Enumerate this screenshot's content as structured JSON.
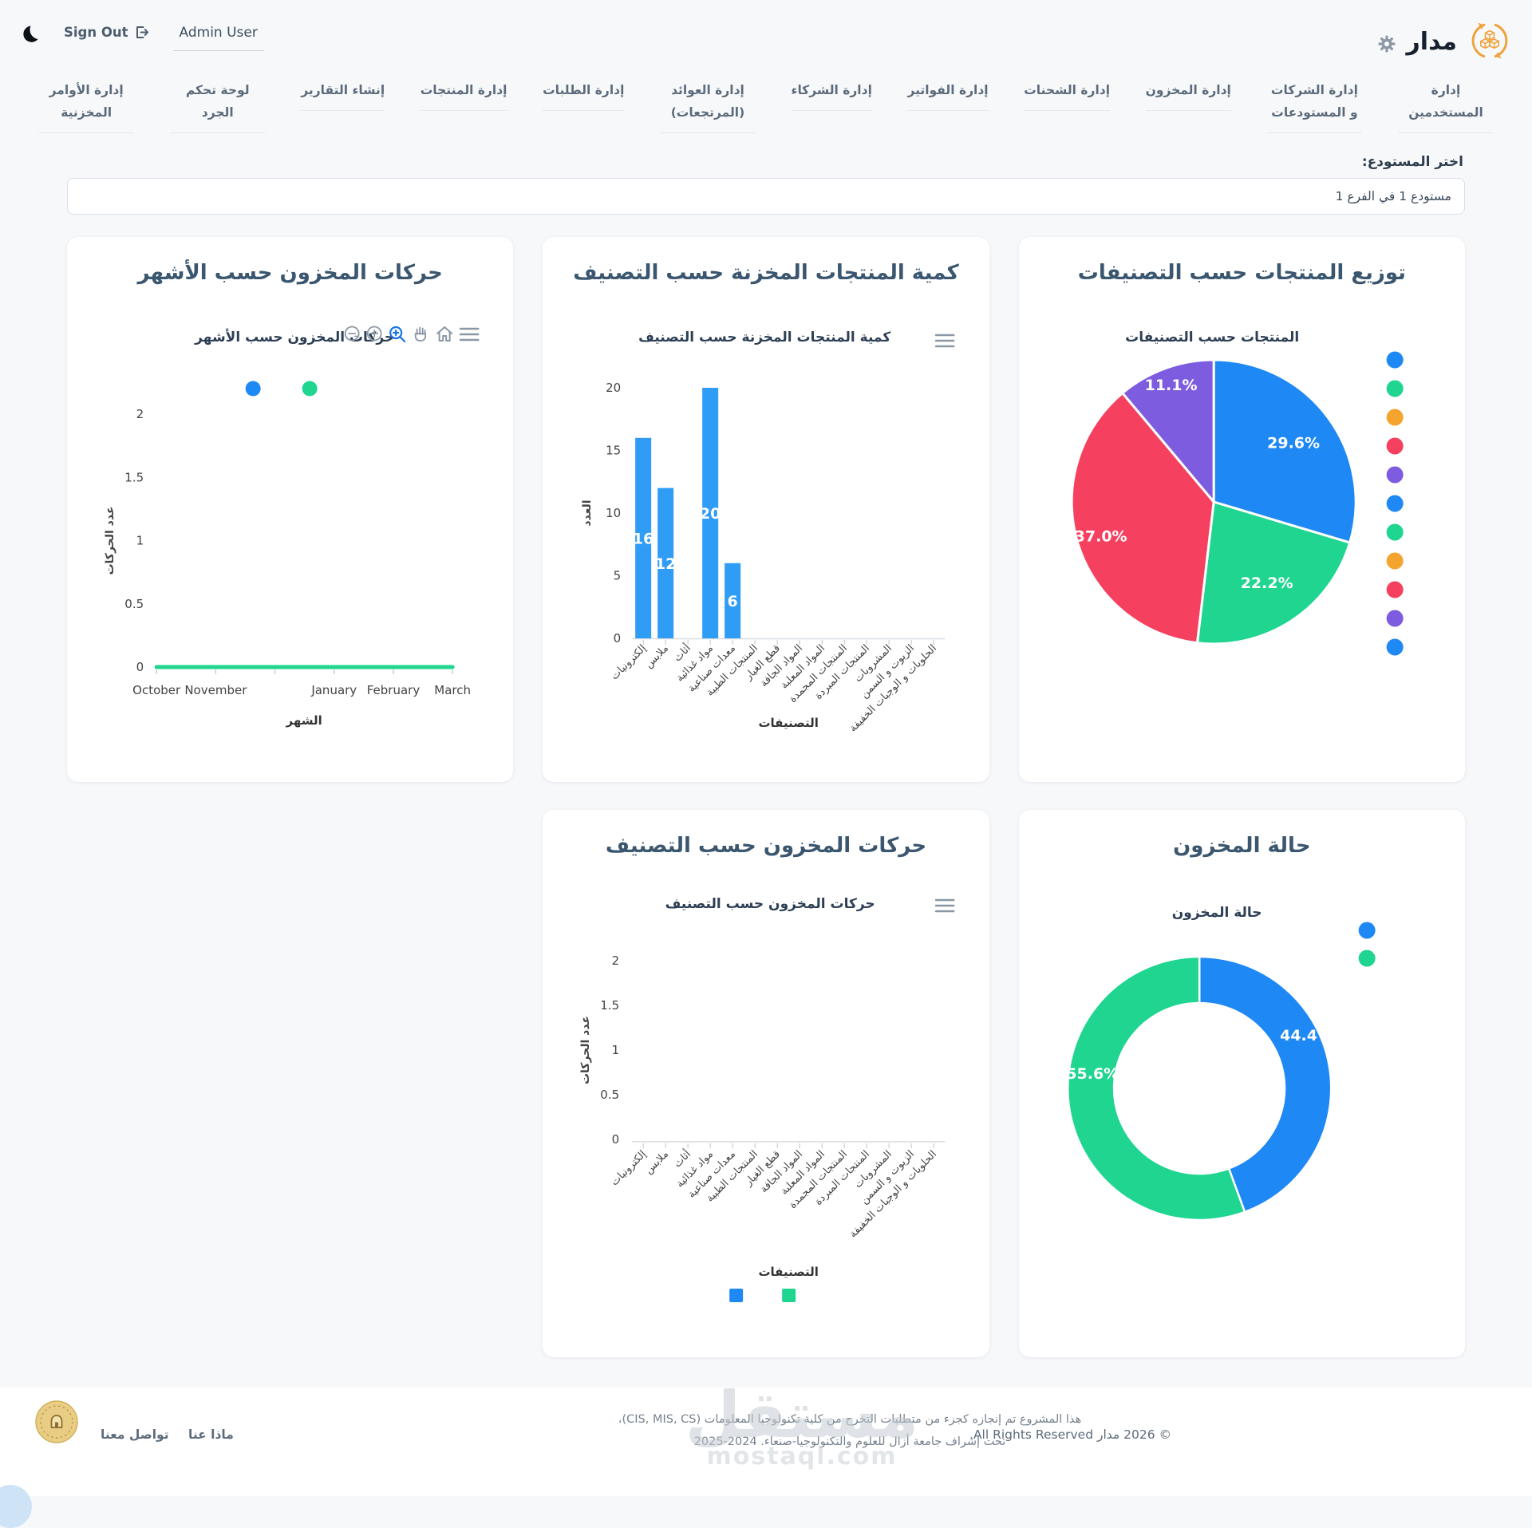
{
  "topbar": {
    "brand": "مدار",
    "sign_out": "Sign Out",
    "user": "Admin User"
  },
  "nav": {
    "items": [
      {
        "id": "users",
        "label": "إدارة المستخدمين"
      },
      {
        "id": "companies-warehouses",
        "label": "إدارة الشركات و المستودعات"
      },
      {
        "id": "inventory",
        "label": "إدارة المخزون"
      },
      {
        "id": "shipments",
        "label": "إدارة الشحنات"
      },
      {
        "id": "invoices",
        "label": "إدارة الفواتير"
      },
      {
        "id": "partners",
        "label": "إدارة الشركاء"
      },
      {
        "id": "returns",
        "label": "إدارة العوائد (المرتجعات)"
      },
      {
        "id": "orders",
        "label": "إدارة الطلبات"
      },
      {
        "id": "products",
        "label": "إدارة المنتجات"
      },
      {
        "id": "reports",
        "label": "إنشاء التقارير"
      },
      {
        "id": "stocktake-dashboard",
        "label": "لوحة تحكم الجرد"
      },
      {
        "id": "inventory-orders",
        "label": "إدارة الأوامر المخزنية"
      }
    ]
  },
  "warehouse": {
    "label": "اختر المستودع:",
    "selected": "مستودع 1 في الفرع 1"
  },
  "chart_data": [
    {
      "type": "pie",
      "variant": "pie",
      "title": "توزيع المنتجات حسب التصنيفات",
      "inner_title": "المنتجات حسب التصنيفات",
      "slices": [
        {
          "pct": 29.6,
          "color": "#1e88f5"
        },
        {
          "pct": 22.2,
          "color": "#1fd590"
        },
        {
          "pct": 37.0,
          "color": "#f5415f"
        },
        {
          "pct": 11.1,
          "color": "#7d5ce0"
        }
      ],
      "legend_position": "right",
      "legend_colors": [
        "#1e88f5",
        "#1fd590",
        "#f5a42e",
        "#f5415f",
        "#7d5ce0",
        "#1e88f5",
        "#1fd590",
        "#f5a42e",
        "#f5415f",
        "#7d5ce0",
        "#1e88f5"
      ]
    },
    {
      "type": "bar",
      "variant": "bar-categories",
      "title": "كمية المنتجات المخزنة حسب التصنيف",
      "inner_title": "كمية المنتجات المخزنة حسب التصنيف",
      "xlabel": "التصنيفات",
      "ylabel": "العدد",
      "categories": [
        "إلكترونيات",
        "ملابس",
        "أثاث",
        "مواد غذائية",
        "معدات صناعية",
        "المنتجات الطبية",
        "قطع الغيار",
        "المواد الجافة",
        "المواد المعلبة",
        "المنتجات المجمدة",
        "المنتجات المبردة",
        "المشروبات",
        "الزيوت و السمن",
        "الحلويات و الوجبات الخفيفة"
      ],
      "values": [
        16,
        12,
        0,
        20,
        6,
        0,
        0,
        0,
        0,
        0,
        0,
        0,
        0,
        0
      ],
      "bar_color": "#2f9cf5",
      "yticks": [
        0,
        5,
        10,
        15,
        20
      ],
      "ylim": [
        0,
        20
      ],
      "grid": false
    },
    {
      "type": "line",
      "variant": "line-months",
      "title": "حركات المخزون حسب الأشهر",
      "inner_title": "حركات المخزون حسب الأشهر",
      "xlabel": "الشهر",
      "ylabel": "عدد الحركات",
      "x_slots": [
        "October",
        "November",
        "",
        "January",
        "February",
        "March"
      ],
      "series": [
        {
          "color": "#1e88f5",
          "values": []
        },
        {
          "color": "#1fd590",
          "values": [
            0,
            0,
            0,
            0,
            0,
            0
          ]
        }
      ],
      "yticks": [
        0,
        0.5,
        1,
        1.5,
        2
      ],
      "ylim": [
        0,
        2
      ],
      "grid": false
    },
    {
      "type": "donut",
      "variant": "donut",
      "title": "حالة المخزون",
      "inner_title": "حالة المخزون",
      "slices": [
        {
          "pct": 44.4,
          "color": "#1e88f5"
        },
        {
          "pct": 55.6,
          "color": "#1fd590"
        }
      ],
      "legend_position": "right",
      "legend_colors": [
        "#1e88f5",
        "#1fd590"
      ]
    },
    {
      "type": "line",
      "variant": "line-categories",
      "title": "حركات المخزون حسب التصنيف",
      "inner_title": "حركات المخزون حسب التصنيف",
      "xlabel": "التصنيفات",
      "ylabel": "عدد الحركات",
      "categories": [
        "إلكترونيات",
        "ملابس",
        "أثاث",
        "مواد غذائية",
        "معدات صناعية",
        "المنتجات الطبية",
        "قطع الغيار",
        "المواد الجافة",
        "المواد المعلبة",
        "المنتجات المجمدة",
        "المنتجات المبردة",
        "المشروبات",
        "الزيوت و السمن",
        "الحلويات و الوجبات الخفيفة"
      ],
      "series": [],
      "yticks": [
        0,
        0.5,
        1,
        1.5,
        2
      ],
      "ylim": [
        0,
        2
      ],
      "grid": false,
      "legend_colors": [
        "#1e88f5",
        "#1fd590"
      ]
    }
  ],
  "footer": {
    "copyright": "© 2026 مدار All Rights Reserved.",
    "note_line1": "هذا المشروع تم إنجازه كجزء من متطلبات التخرج من كلية تكنولوجيا المعلومات (CIS, MIS, CS)،",
    "note_line2": "تحت إشراف جامعة أزال للعلوم والتكنولوجيا-صنعاء. 2024-2025",
    "about": "ماذا عنا",
    "contact": "تواصل معنا"
  },
  "watermark": {
    "title": "مستقل",
    "domain": "mostaql.com"
  },
  "colors": {
    "blue": "#1e88f5",
    "green": "#1fd590",
    "red": "#f5415f",
    "purple": "#7d5ce0",
    "orange": "#f5a42e",
    "bar_blue": "#2f9cf5"
  }
}
